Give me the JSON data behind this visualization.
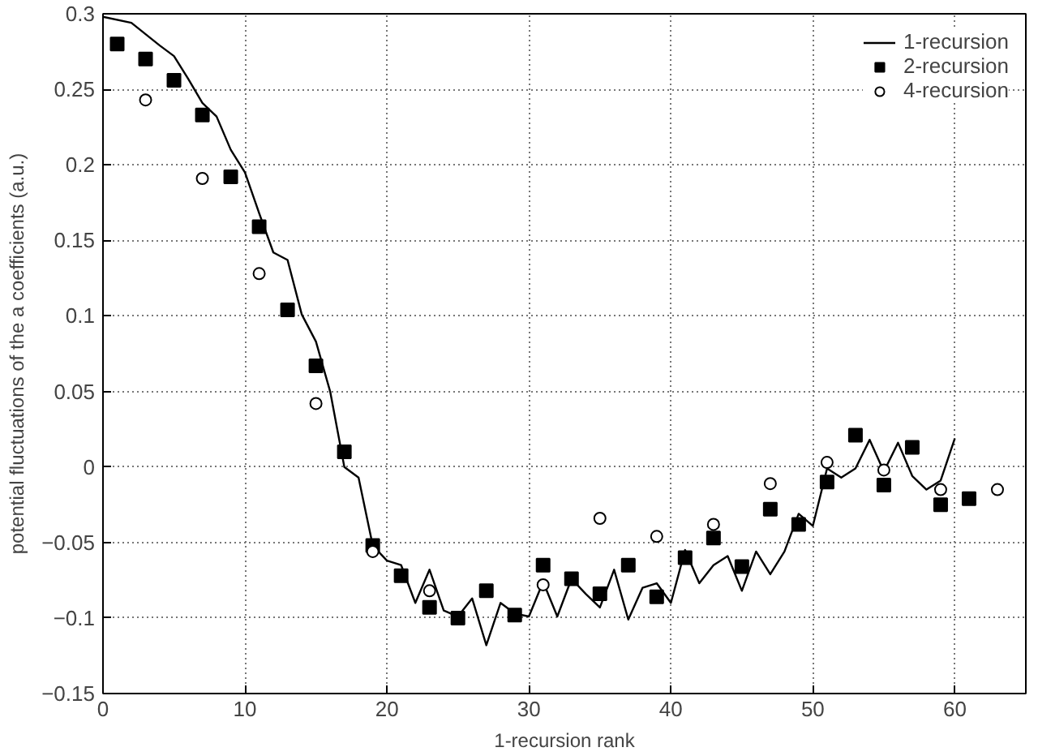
{
  "chart_data": {
    "type": "line",
    "xlabel": "1-recursion rank",
    "ylabel": "potential fluctuations of the a coefficients (a.u.)",
    "xlim": [
      0,
      65
    ],
    "ylim": [
      -0.15,
      0.3
    ],
    "xticks": [
      0,
      10,
      20,
      30,
      40,
      50,
      60
    ],
    "yticks": [
      -0.15,
      -0.1,
      -0.05,
      0,
      0.05,
      0.1,
      0.15,
      0.2,
      0.25,
      0.3
    ],
    "grid": true,
    "legend": "top right",
    "series": [
      {
        "name": "1-recursion",
        "color": "#000000",
        "marker": "none",
        "x": [
          0,
          2,
          4,
          5,
          6,
          7,
          8,
          9,
          10,
          11,
          12,
          13,
          14,
          15,
          16,
          17,
          18,
          19,
          20,
          21,
          22,
          23,
          24,
          25,
          26,
          27,
          28,
          29,
          30,
          31,
          32,
          33,
          34,
          35,
          36,
          37,
          38,
          39,
          40,
          41,
          42,
          43,
          44,
          45,
          46,
          47,
          48,
          49,
          50,
          51,
          52,
          53,
          54,
          55,
          56,
          57,
          58,
          59,
          60
        ],
        "values": [
          0.298,
          0.294,
          0.279,
          0.272,
          0.257,
          0.241,
          0.232,
          0.21,
          0.195,
          0.168,
          0.142,
          0.137,
          0.101,
          0.083,
          0.05,
          0.0,
          -0.007,
          -0.052,
          -0.062,
          -0.065,
          -0.09,
          -0.068,
          -0.095,
          -0.099,
          -0.087,
          -0.118,
          -0.09,
          -0.097,
          -0.099,
          -0.076,
          -0.099,
          -0.074,
          -0.084,
          -0.093,
          -0.068,
          -0.101,
          -0.08,
          -0.077,
          -0.09,
          -0.055,
          -0.077,
          -0.065,
          -0.059,
          -0.082,
          -0.056,
          -0.071,
          -0.056,
          -0.031,
          -0.039,
          -0.001,
          -0.007,
          -0.001,
          0.018,
          -0.003,
          0.016,
          -0.006,
          -0.015,
          -0.009,
          0.019
        ]
      },
      {
        "name": "2-recursion",
        "type": "scatter",
        "color": "#000000",
        "marker": "square",
        "x": [
          1,
          3,
          5,
          7,
          9,
          11,
          13,
          15,
          17,
          19,
          21,
          23,
          25,
          27,
          29,
          31,
          33,
          35,
          37,
          39,
          41,
          43,
          45,
          47,
          49,
          51,
          53,
          55,
          57,
          59,
          61
        ],
        "values": [
          0.28,
          0.27,
          0.256,
          0.233,
          0.192,
          0.159,
          0.104,
          0.067,
          0.01,
          -0.052,
          -0.072,
          -0.093,
          -0.1,
          -0.082,
          -0.098,
          -0.065,
          -0.074,
          -0.084,
          -0.065,
          -0.086,
          -0.06,
          -0.047,
          -0.066,
          -0.028,
          -0.038,
          -0.01,
          0.021,
          -0.012,
          0.013,
          -0.025,
          -0.021
        ]
      },
      {
        "name": "4-recursion",
        "type": "scatter",
        "color": "#000000",
        "marker": "circle",
        "x": [
          3,
          7,
          11,
          15,
          19,
          23,
          31,
          35,
          39,
          43,
          47,
          51,
          55,
          59,
          63
        ],
        "values": [
          0.243,
          0.191,
          0.128,
          0.042,
          -0.056,
          -0.082,
          -0.078,
          -0.034,
          -0.046,
          -0.038,
          -0.011,
          0.003,
          -0.002,
          -0.015,
          -0.015
        ]
      }
    ]
  }
}
